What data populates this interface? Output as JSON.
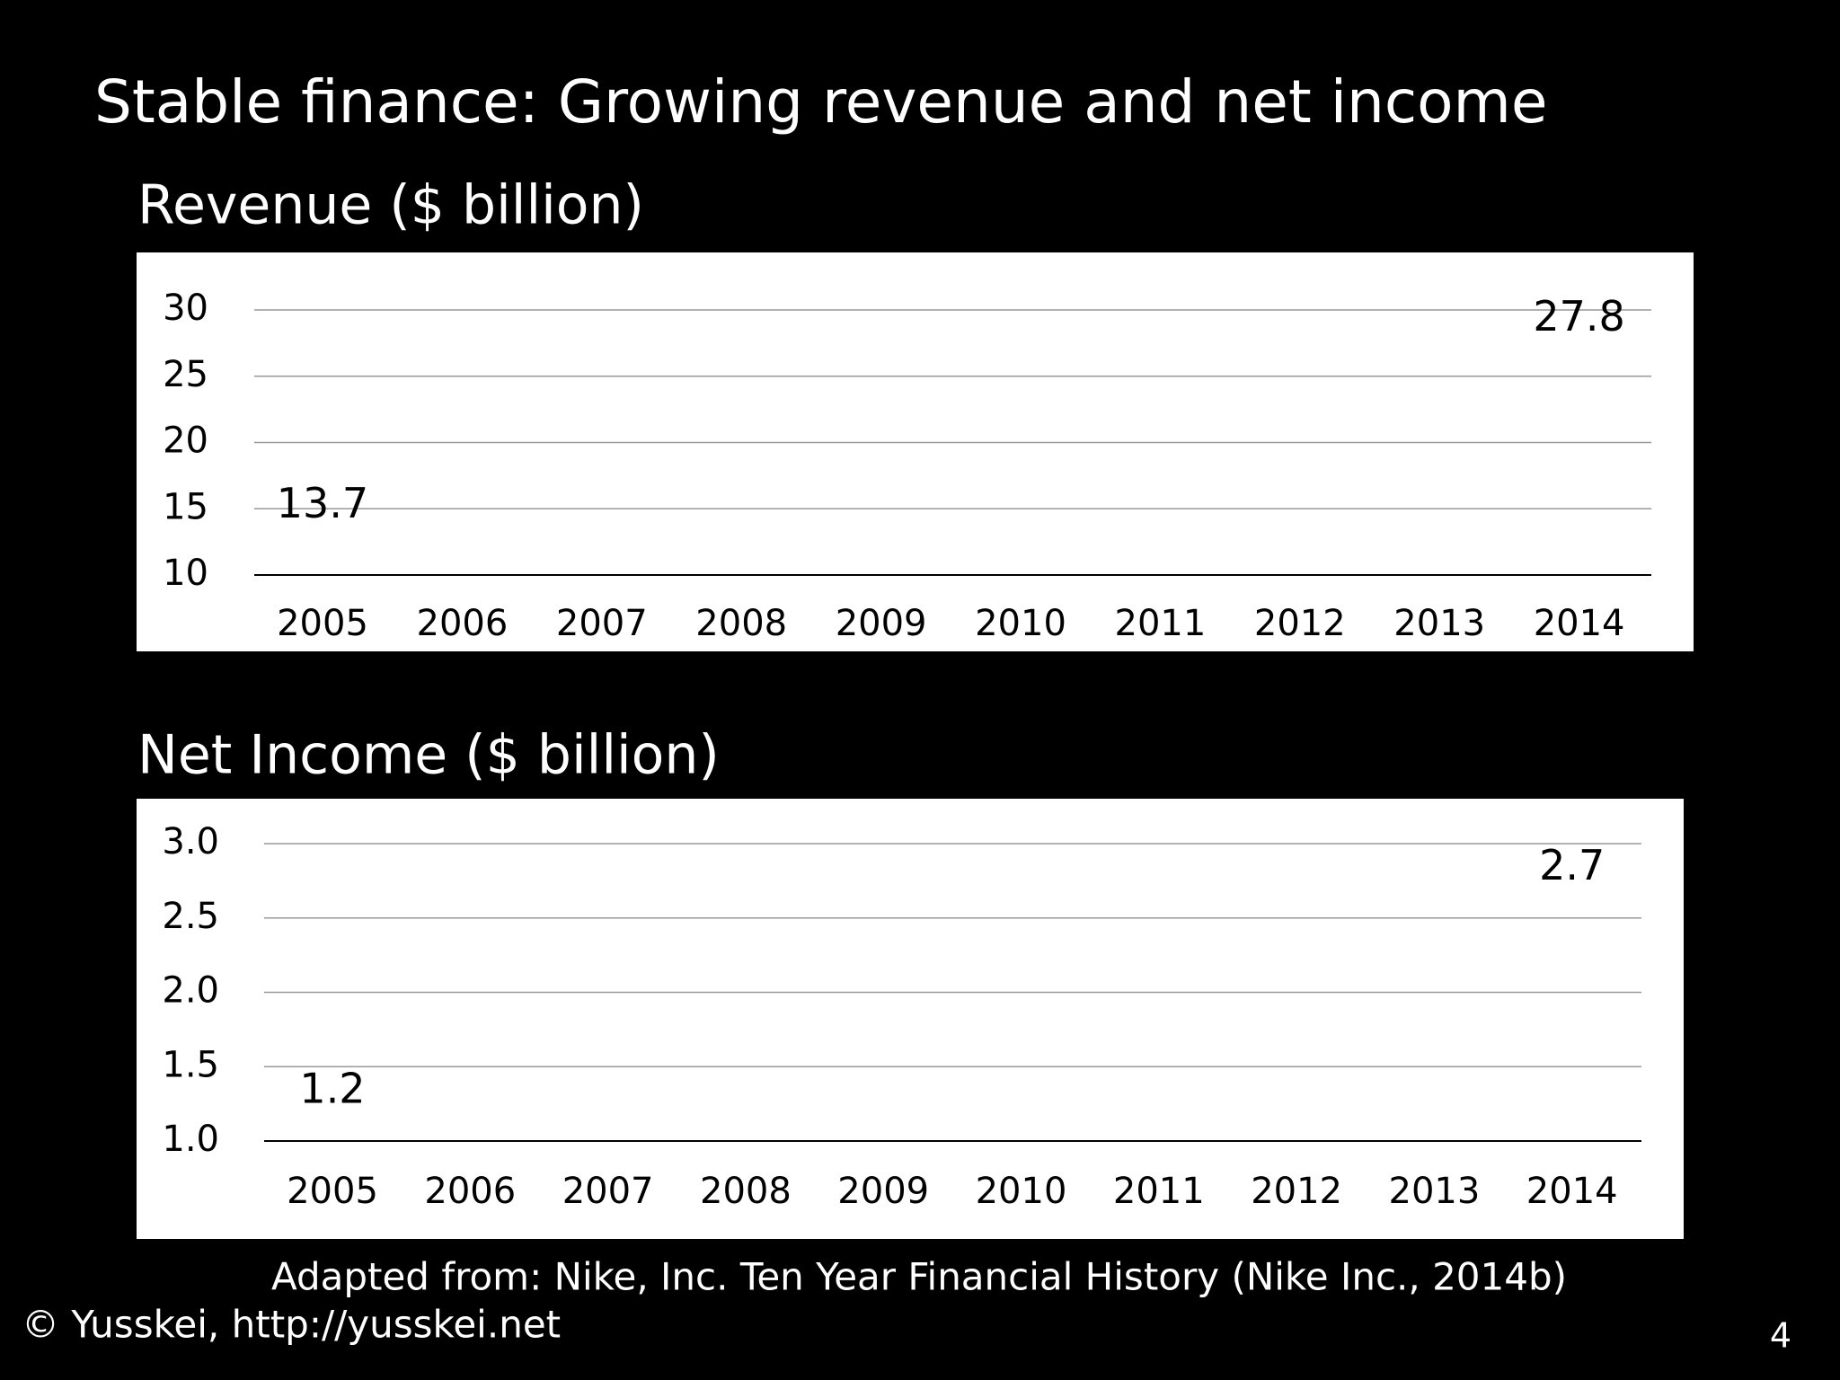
{
  "title": "Stable finance: Growing revenue and net income",
  "chart_data": [
    {
      "type": "line",
      "title": "Revenue ($ billion)",
      "categories": [
        "2005",
        "2006",
        "2007",
        "2008",
        "2009",
        "2010",
        "2011",
        "2012",
        "2013",
        "2014"
      ],
      "values": [
        13.7,
        null,
        null,
        null,
        null,
        null,
        null,
        null,
        null,
        27.8
      ],
      "ylim": [
        10,
        30
      ],
      "yticks": [
        10,
        15,
        20,
        25,
        30
      ],
      "grid": true
    },
    {
      "type": "line",
      "title": "Net Income ($ billion)",
      "categories": [
        "2005",
        "2006",
        "2007",
        "2008",
        "2009",
        "2010",
        "2011",
        "2012",
        "2013",
        "2014"
      ],
      "values": [
        1.2,
        null,
        null,
        null,
        null,
        null,
        null,
        null,
        null,
        2.7
      ],
      "ylim": [
        1.0,
        3.0
      ],
      "yticks": [
        {
          "value": 1.0,
          "label": "1.0"
        },
        1.5,
        {
          "value": 2.0,
          "label": "2.0"
        },
        2.5,
        {
          "value": 3.0,
          "label": "3.0"
        }
      ],
      "grid": true
    }
  ],
  "source": "Adapted from: Nike, Inc. Ten Year Financial History (Nike Inc., 2014b)",
  "copyright": "© Yusskei, http://yusskei.net",
  "page_number": "4"
}
